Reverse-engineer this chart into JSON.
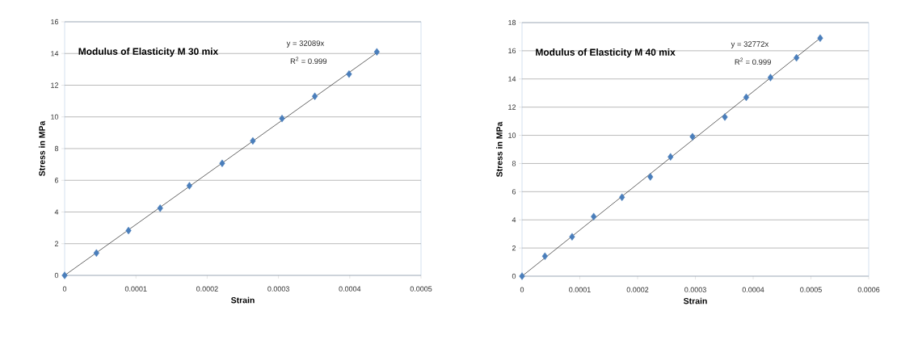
{
  "chart_data": [
    {
      "type": "scatter",
      "title": "Modulus of Elasticity  M 30 mix",
      "xlabel": "Strain",
      "ylabel": "Stress in MPa",
      "annotations": [
        "y = 32089x",
        "R$^{2}$ = 0.999"
      ],
      "series": [
        {
          "color": "#4a7ebb",
          "x": [
            0,
            4.46e-05,
            8.96e-05,
            0.000134,
            0.000175,
            0.000221,
            0.000264,
            0.000305,
            0.000351,
            0.000399,
            0.000438
          ],
          "values": [
            0,
            1.41,
            2.83,
            4.24,
            5.66,
            7.07,
            8.49,
            9.9,
            11.3,
            12.7,
            14.1
          ]
        },
        {
          "type": "line",
          "marker": "none",
          "color": "#000000",
          "x": [
            0,
            0.000438
          ],
          "values": [
            0,
            14.05
          ]
        }
      ],
      "xlim": [
        0,
        0.0005
      ],
      "xticks": [
        0,
        0.0001,
        0.0002,
        0.0003,
        0.0004,
        0.0005
      ],
      "ylim": [
        0,
        16
      ],
      "yticks": [
        0,
        2,
        4,
        6,
        8,
        10,
        12,
        14,
        16
      ],
      "grid": "y",
      "marker": "diamond"
    },
    {
      "type": "scatter",
      "title": "Modulus of Elasticity  M 40 mix",
      "xlabel": "Strain",
      "ylabel": "Stress in MPa",
      "annotations": [
        "y = 32772x",
        "R$^{2}$ = 0.999"
      ],
      "series": [
        {
          "color": "#4a7ebb",
          "x": [
            0,
            3.96e-05,
            8.66e-05,
            0.000124,
            0.000173,
            0.000222,
            0.000257,
            0.000295,
            0.000351,
            0.000388,
            0.00043,
            0.000475,
            0.000516
          ],
          "values": [
            0,
            1.42,
            2.8,
            4.23,
            5.6,
            7.05,
            8.47,
            9.9,
            11.3,
            12.7,
            14.1,
            15.5,
            16.9
          ]
        },
        {
          "type": "line",
          "marker": "none",
          "color": "#000000",
          "x": [
            0,
            0.000516
          ],
          "values": [
            0,
            16.9
          ]
        }
      ],
      "xlim": [
        0,
        0.0006
      ],
      "xticks": [
        0,
        0.0001,
        0.0002,
        0.0003,
        0.0004,
        0.0005,
        0.0006
      ],
      "ylim": [
        0,
        18
      ],
      "yticks": [
        0,
        2,
        4,
        6,
        8,
        10,
        12,
        14,
        16,
        18
      ],
      "grid": "y",
      "marker": "diamond"
    }
  ]
}
